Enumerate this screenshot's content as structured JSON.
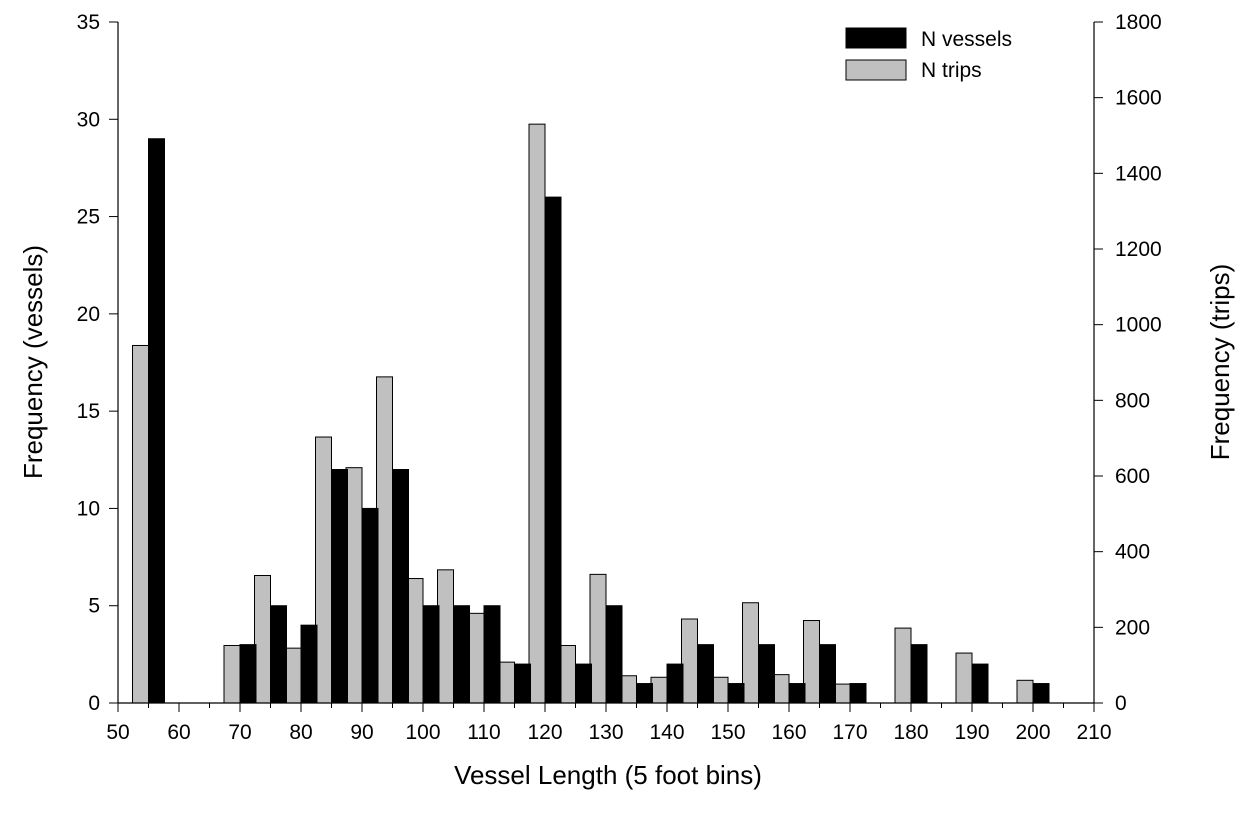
{
  "chart_data": {
    "type": "bar",
    "title": "",
    "xlabel": "Vessel Length (5 foot bins)",
    "ylabel_left": "Frequency (vessels)",
    "ylabel_right": "Frequency (trips)",
    "xlim": [
      50,
      210
    ],
    "ylim_left": [
      0,
      35
    ],
    "ylim_right": [
      0,
      1800
    ],
    "x_ticks": [
      "50",
      "60",
      "70",
      "80",
      "90",
      "100",
      "110",
      "120",
      "130",
      "140",
      "150",
      "160",
      "170",
      "180",
      "190",
      "200",
      "210"
    ],
    "y_left_ticks": [
      "0",
      "5",
      "10",
      "15",
      "20",
      "25",
      "30",
      "35"
    ],
    "y_right_ticks": [
      "0",
      "200",
      "400",
      "600",
      "800",
      "1000",
      "1200",
      "1400",
      "1600",
      "1800"
    ],
    "grid": false,
    "legend_position": "top-right",
    "bins": [
      55,
      60,
      65,
      70,
      75,
      80,
      85,
      90,
      95,
      100,
      105,
      110,
      115,
      120,
      125,
      130,
      135,
      140,
      145,
      150,
      155,
      160,
      165,
      170,
      175,
      180,
      185,
      190,
      195,
      200,
      205
    ],
    "series": [
      {
        "name": "N vessels",
        "axis": "left",
        "color": "#000000",
        "values": [
          29,
          0,
          0,
          3,
          5,
          4,
          12,
          10,
          12,
          5,
          5,
          5,
          2,
          26,
          2,
          5,
          1,
          2,
          3,
          1,
          3,
          1,
          3,
          1,
          0,
          3,
          0,
          2,
          0,
          1,
          0
        ]
      },
      {
        "name": "N trips",
        "axis": "right",
        "color": "#c0c0c0",
        "values": [
          945,
          0,
          0,
          152,
          337,
          145,
          703,
          622,
          862,
          329,
          352,
          237,
          108,
          1530,
          152,
          340,
          72,
          68,
          222,
          68,
          265,
          75,
          218,
          50,
          0,
          198,
          0,
          132,
          0,
          60,
          0
        ]
      }
    ]
  }
}
